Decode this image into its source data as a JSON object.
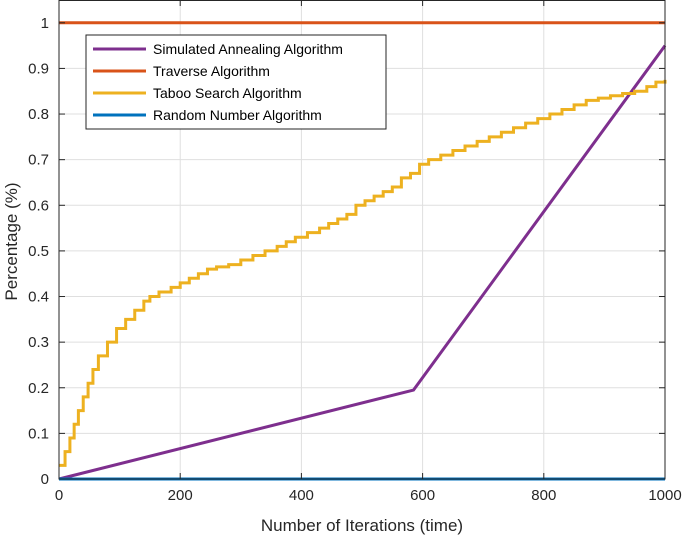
{
  "chart_data": {
    "type": "line",
    "title": "",
    "xlabel": "Number of Iterations (time)",
    "ylabel": "Percentage (%)",
    "xlim": [
      0,
      1000
    ],
    "ylim": [
      0,
      1.05
    ],
    "xticks": [
      0,
      200,
      400,
      600,
      800,
      1000
    ],
    "xtick_labels": [
      "0",
      "200",
      "400",
      "600",
      "800",
      "1000"
    ],
    "yticks": [
      0,
      0.1,
      0.2,
      0.3,
      0.4,
      0.5,
      0.6,
      0.7,
      0.8,
      0.9,
      1
    ],
    "ytick_labels": [
      "0",
      "0.1",
      "0.2",
      "0.3",
      "0.4",
      "0.5",
      "0.6",
      "0.7",
      "0.8",
      "0.9",
      "1"
    ],
    "grid": true,
    "legend_position": "top-left",
    "series": [
      {
        "name": "Simulated Annealing Algorithm",
        "color": "#7E2F8E",
        "style": "line",
        "x": [
          0,
          585,
          1000
        ],
        "y": [
          0,
          0.195,
          0.95
        ]
      },
      {
        "name": "Traverse Algorithm",
        "color": "#D95319",
        "style": "line",
        "x": [
          0,
          1000
        ],
        "y": [
          1,
          1
        ]
      },
      {
        "name": "Taboo Search Algorithm",
        "color": "#EDB120",
        "style": "step",
        "x": [
          0,
          10,
          18,
          25,
          32,
          40,
          48,
          56,
          65,
          80,
          95,
          110,
          125,
          140,
          150,
          165,
          185,
          200,
          215,
          230,
          245,
          260,
          280,
          300,
          320,
          340,
          360,
          375,
          390,
          410,
          430,
          445,
          460,
          475,
          490,
          505,
          520,
          535,
          550,
          565,
          580,
          595,
          610,
          630,
          650,
          670,
          690,
          710,
          730,
          750,
          770,
          790,
          810,
          830,
          850,
          870,
          890,
          910,
          930,
          950,
          970,
          985,
          1000
        ],
        "y": [
          0.03,
          0.06,
          0.09,
          0.12,
          0.15,
          0.18,
          0.21,
          0.24,
          0.27,
          0.3,
          0.33,
          0.35,
          0.37,
          0.39,
          0.4,
          0.41,
          0.42,
          0.43,
          0.44,
          0.45,
          0.46,
          0.465,
          0.47,
          0.48,
          0.49,
          0.5,
          0.51,
          0.52,
          0.53,
          0.54,
          0.55,
          0.56,
          0.57,
          0.58,
          0.6,
          0.61,
          0.62,
          0.63,
          0.64,
          0.66,
          0.67,
          0.69,
          0.7,
          0.71,
          0.72,
          0.73,
          0.74,
          0.75,
          0.76,
          0.77,
          0.78,
          0.79,
          0.8,
          0.81,
          0.82,
          0.83,
          0.835,
          0.84,
          0.845,
          0.85,
          0.86,
          0.87,
          0.875
        ]
      },
      {
        "name": "Random Number Algorithm",
        "color": "#0072BD",
        "style": "line",
        "x": [
          0,
          1000
        ],
        "y": [
          0,
          0
        ]
      }
    ]
  }
}
